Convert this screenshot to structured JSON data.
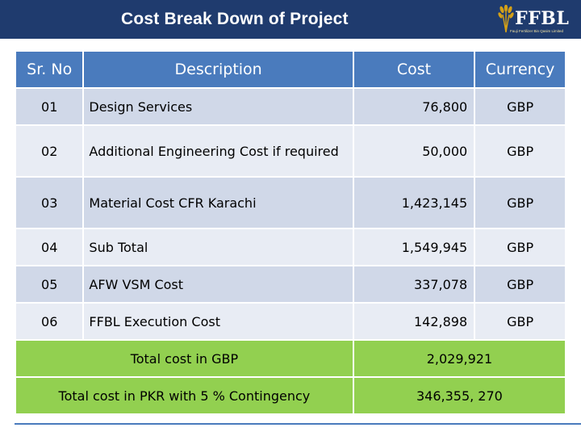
{
  "header": {
    "title": "Cost Break Down of Project",
    "logo_text": "FFBL",
    "logo_tagline": "Fauji Fertilizer Bin Qasim Limited"
  },
  "table": {
    "columns": [
      "Sr. No",
      "Description",
      "Cost",
      "Currency"
    ],
    "rows": [
      {
        "sr": "01",
        "description": "Design Services",
        "cost": "76,800",
        "currency": "GBP"
      },
      {
        "sr": "02",
        "description": "Additional Engineering Cost if required",
        "cost": "50,000",
        "currency": "GBP"
      },
      {
        "sr": "03",
        "description": "Material Cost CFR Karachi",
        "cost": "1,423,145",
        "currency": "GBP"
      },
      {
        "sr": "04",
        "description": "Sub Total",
        "cost": "1,549,945",
        "currency": "GBP"
      },
      {
        "sr": "05",
        "description": "AFW VSM Cost",
        "cost": "337,078",
        "currency": "GBP"
      },
      {
        "sr": "06",
        "description": "FFBL Execution Cost",
        "cost": "142,898",
        "currency": "GBP"
      }
    ],
    "totals": [
      {
        "label": "Total cost in GBP",
        "value": "2,029,921"
      },
      {
        "label": "Total cost in PKR with 5 % Contingency",
        "value": "346,355, 270"
      }
    ]
  },
  "colors": {
    "header_bg": "#1f3b6e",
    "column_header_bg": "#4a7bbd",
    "row_bg": "#d0d8e8",
    "row_alt_bg": "#e8ecf4",
    "total_bg": "#92d050",
    "logo_gold": "#d4a017"
  }
}
